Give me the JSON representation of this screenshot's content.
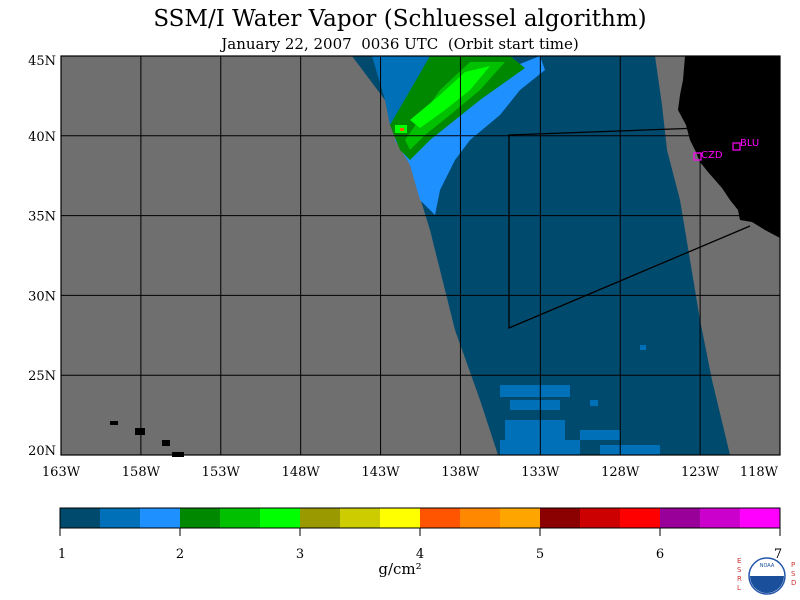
{
  "title": "SSM/I Water Vapor (Schluessel algorithm)",
  "subtitle": "January 22, 2007  0036 UTC  (Orbit start time)",
  "map": {
    "lon_range": [
      -163,
      -118
    ],
    "lat_range": [
      20,
      45
    ],
    "lon_ticks": [
      "163W",
      "158W",
      "153W",
      "148W",
      "143W",
      "138W",
      "133W",
      "128W",
      "123W",
      "118W"
    ],
    "lat_ticks": [
      "45N",
      "40N",
      "35N",
      "30N",
      "25N",
      "20N"
    ],
    "colors": {
      "no_data": "#6f6f6f",
      "land": "#000000",
      "grid": "#000000"
    },
    "stations": [
      {
        "id": "CZD",
        "lon": -123.2,
        "lat": 38.6
      },
      {
        "id": "BLU",
        "lon": -120.8,
        "lat": 39.3
      }
    ]
  },
  "colorbar": {
    "min": 1,
    "max": 7,
    "tick_labels": [
      "1",
      "2",
      "3",
      "4",
      "5",
      "6",
      "7"
    ],
    "units": "g/cm²",
    "colors": [
      "#004a6e",
      "#0070b8",
      "#1e90ff",
      "#008800",
      "#00c000",
      "#00ff00",
      "#9a9a00",
      "#cccc00",
      "#ffff00",
      "#ff5500",
      "#ff8800",
      "#ffa500",
      "#8b0000",
      "#cc0000",
      "#ff0000",
      "#990099",
      "#cc00cc",
      "#ff00ff"
    ]
  },
  "logo": {
    "left_letters": "ESRL",
    "right_letters": "PSD",
    "text": "NOAA"
  }
}
